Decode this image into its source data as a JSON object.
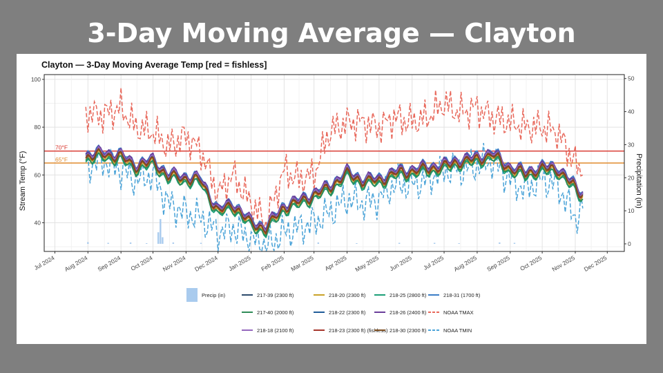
{
  "slide": {
    "title": "3-Day Moving Average — Clayton"
  },
  "chart_data": {
    "type": "line",
    "title": "Clayton — 3-Day Moving Average Temp   [red = fishless]",
    "ylabel": "Stream Temp (°F)",
    "y2label": "Precipitation (in)",
    "ylim": [
      28,
      102
    ],
    "y2lim": [
      -2.3,
      51.2
    ],
    "yticks": [
      40,
      60,
      80,
      100
    ],
    "y2ticks": [
      0,
      10,
      20,
      30,
      40,
      50
    ],
    "xlim": [
      "2024-06-21",
      "2025-12-17"
    ],
    "xticks": [
      "2024-07-01",
      "2024-08-01",
      "2024-09-01",
      "2024-10-01",
      "2024-11-01",
      "2024-12-01",
      "2025-01-01",
      "2025-02-01",
      "2025-03-01",
      "2025-04-01",
      "2025-05-01",
      "2025-06-01",
      "2025-07-01",
      "2025-08-01",
      "2025-09-01",
      "2025-10-01",
      "2025-11-01",
      "2025-12-01"
    ],
    "xticklabels": [
      "Jul 2024",
      "Aug 2024",
      "Sep 2024",
      "Oct 2024",
      "Nov 2024",
      "Dec 2024",
      "Jan 2025",
      "Feb 2025",
      "Mar 2025",
      "Apr 2025",
      "May 2025",
      "Jun 2025",
      "Jul 2025",
      "Aug 2025",
      "Sep 2025",
      "Oct 2025",
      "Nov 2025",
      "Dec 2025"
    ],
    "grid": true,
    "legend_position": "bottom",
    "thresholds": [
      {
        "label": "70°F",
        "value": 70,
        "color": "#d73027"
      },
      {
        "label": "65°F",
        "value": 65,
        "color": "#e08a2c"
      }
    ],
    "dates": [
      "2024-07-30",
      "2024-08-15",
      "2024-09-01",
      "2024-09-15",
      "2024-10-01",
      "2024-10-15",
      "2024-11-01",
      "2024-11-15",
      "2024-12-01",
      "2024-12-15",
      "2025-01-01",
      "2025-01-15",
      "2025-02-01",
      "2025-02-15",
      "2025-03-01",
      "2025-03-15",
      "2025-04-01",
      "2025-04-15",
      "2025-05-01",
      "2025-05-15",
      "2025-06-01",
      "2025-06-15",
      "2025-07-01",
      "2025-07-15",
      "2025-08-01",
      "2025-08-15",
      "2025-09-01",
      "2025-09-15",
      "2025-10-01",
      "2025-10-15",
      "2025-11-01",
      "2025-11-08"
    ],
    "stream_base": [
      68,
      69,
      68,
      64,
      66,
      60,
      59,
      58,
      45,
      48,
      40,
      38,
      47,
      49,
      52,
      55,
      61,
      58,
      58,
      61,
      62,
      63,
      64,
      66,
      67,
      69,
      63,
      61,
      63,
      63,
      55,
      52
    ],
    "series": [
      {
        "name": "217-39 (2300 ft)",
        "color": "#2b4a6b",
        "offset": 0.0
      },
      {
        "name": "218-20 (2300 ft)",
        "color": "#c9a227",
        "offset": -1.2
      },
      {
        "name": "218-25 (2800 ft)",
        "color": "#1b9e77",
        "offset": -2.2
      },
      {
        "name": "218-31 (1700 ft)",
        "color": "#3a7dc6",
        "offset": 1.2
      },
      {
        "name": "217-40 (2000 ft)",
        "color": "#2e8b57",
        "offset": -1.8
      },
      {
        "name": "218-22 (2300 ft)",
        "color": "#1f5c99",
        "offset": 0.6
      },
      {
        "name": "218-26 (2400 ft)",
        "color": "#6a3d9a",
        "offset": 0.9
      },
      {
        "name": "218-18 (2100 ft)",
        "color": "#9467bd",
        "offset": 0.3
      },
      {
        "name": "218-23 (2300 ft) (fishless)",
        "color": "#a6352b",
        "offset": -0.6
      },
      {
        "name": "218-30 (2300 ft)",
        "color": "#7a4b1e",
        "offset": -0.3
      }
    ],
    "noaa_tmax": {
      "name": "NOAA TMAX",
      "color": "#e8675a",
      "values": [
        86,
        85,
        88,
        80,
        78,
        72,
        76,
        70,
        52,
        60,
        48,
        40,
        62,
        58,
        60,
        78,
        82,
        82,
        80,
        84,
        82,
        84,
        90,
        86,
        88,
        84,
        82,
        80,
        80,
        78,
        65,
        60
      ]
    },
    "noaa_tmin": {
      "name": "NOAA TMIN",
      "color": "#4aa3d8",
      "values": [
        64,
        66,
        62,
        58,
        60,
        48,
        44,
        42,
        36,
        38,
        33,
        30,
        36,
        38,
        40,
        44,
        50,
        48,
        50,
        56,
        56,
        58,
        62,
        62,
        64,
        66,
        58,
        54,
        58,
        56,
        42,
        46
      ]
    },
    "precip": {
      "name": "Precip (in)",
      "color": "#a9cbee",
      "dates": [
        "2024-08-01",
        "2024-08-20",
        "2024-09-10",
        "2024-09-25",
        "2024-10-06",
        "2024-10-08",
        "2024-10-10",
        "2024-10-20",
        "2024-11-15",
        "2025-02-08",
        "2025-03-05",
        "2025-04-10",
        "2025-05-20",
        "2025-06-22",
        "2025-07-15",
        "2025-08-22",
        "2025-09-05"
      ],
      "values": [
        0.5,
        0.3,
        0.4,
        0.2,
        3.5,
        7.5,
        2.0,
        0.4,
        0.3,
        0.5,
        0.4,
        0.2,
        0.3,
        0.3,
        0.2,
        0.4,
        0.3
      ]
    },
    "legend": [
      {
        "name": "Precip (in)",
        "kind": "bar",
        "color": "#a9cbee"
      },
      {
        "name": "217-39 (2300 ft)",
        "kind": "line",
        "color": "#2b4a6b"
      },
      {
        "name": "218-20 (2300 ft)",
        "kind": "line",
        "color": "#c9a227"
      },
      {
        "name": "218-25 (2800 ft)",
        "kind": "line",
        "color": "#1b9e77"
      },
      {
        "name": "218-31 (1700 ft)",
        "kind": "line",
        "color": "#3a7dc6"
      },
      {
        "name": "217-40 (2000 ft)",
        "kind": "line",
        "color": "#2e8b57"
      },
      {
        "name": "218-22 (2300 ft)",
        "kind": "line",
        "color": "#1f5c99"
      },
      {
        "name": "218-26 (2400 ft)",
        "kind": "line",
        "color": "#6a3d9a"
      },
      {
        "name": "NOAA TMAX",
        "kind": "line",
        "color": "#e8675a"
      },
      {
        "name": "218-18 (2100 ft)",
        "kind": "line",
        "color": "#9467bd"
      },
      {
        "name": "218-23 (2300 ft) (fishless)",
        "kind": "line",
        "color": "#a6352b"
      },
      {
        "name": "218-30 (2300 ft)",
        "kind": "line",
        "color": "#7a4b1e"
      },
      {
        "name": "NOAA TMIN",
        "kind": "line",
        "color": "#4aa3d8"
      }
    ]
  }
}
